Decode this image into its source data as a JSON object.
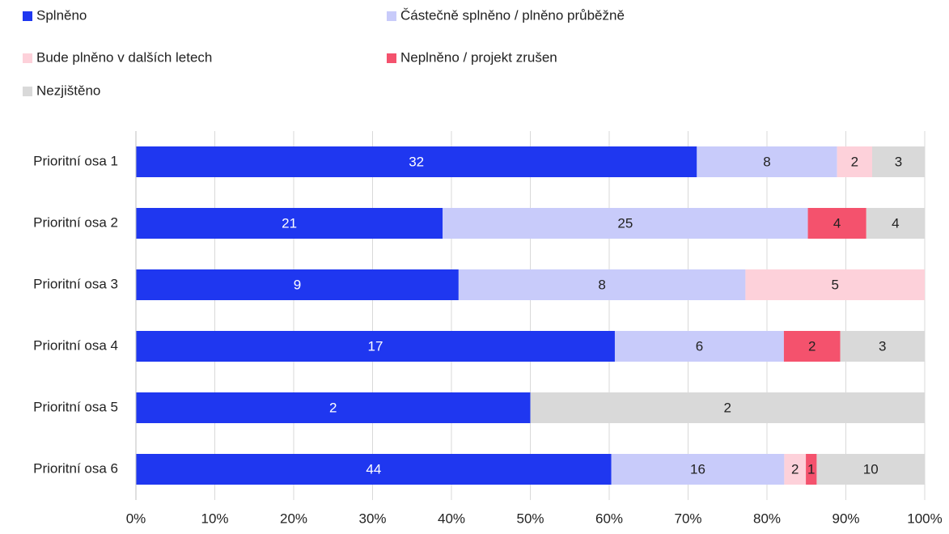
{
  "chart_data": {
    "type": "bar",
    "orientation": "horizontal",
    "stacked": "percent",
    "categories": [
      "Prioritní osa 1",
      "Prioritní osa 2",
      "Prioritní osa 3",
      "Prioritní osa 4",
      "Prioritní osa 5",
      "Prioritní osa 6"
    ],
    "series": [
      {
        "name": "Splněno",
        "color": "#1f37f0",
        "values": [
          32,
          21,
          9,
          17,
          2,
          44
        ]
      },
      {
        "name": "Částečně splněno / plněno průběžně",
        "color": "#c8cbfa",
        "values": [
          8,
          25,
          8,
          6,
          null,
          16
        ]
      },
      {
        "name": "Bude plněno v dalších letech",
        "color": "#fdd1da",
        "values": [
          2,
          null,
          5,
          null,
          null,
          2
        ]
      },
      {
        "name": "Neplněno / projekt zrušen",
        "color": "#f4526d",
        "values": [
          null,
          4,
          null,
          2,
          null,
          1
        ]
      },
      {
        "name": "Nezjištěno",
        "color": "#d9d9d9",
        "values": [
          3,
          4,
          null,
          3,
          2,
          10
        ]
      }
    ],
    "xlim": [
      0,
      100
    ],
    "xticks": [
      {
        "value": 0,
        "label": "0%"
      },
      {
        "value": 10,
        "label": "10%"
      },
      {
        "value": 20,
        "label": "20%"
      },
      {
        "value": 30,
        "label": "30%"
      },
      {
        "value": 40,
        "label": "40%"
      },
      {
        "value": 50,
        "label": "50%"
      },
      {
        "value": 60,
        "label": "60%"
      },
      {
        "value": 70,
        "label": "70%"
      },
      {
        "value": 80,
        "label": "80%"
      },
      {
        "value": 90,
        "label": "90%"
      },
      {
        "value": 100,
        "label": "100%"
      }
    ],
    "grid": true,
    "legend": "top"
  }
}
